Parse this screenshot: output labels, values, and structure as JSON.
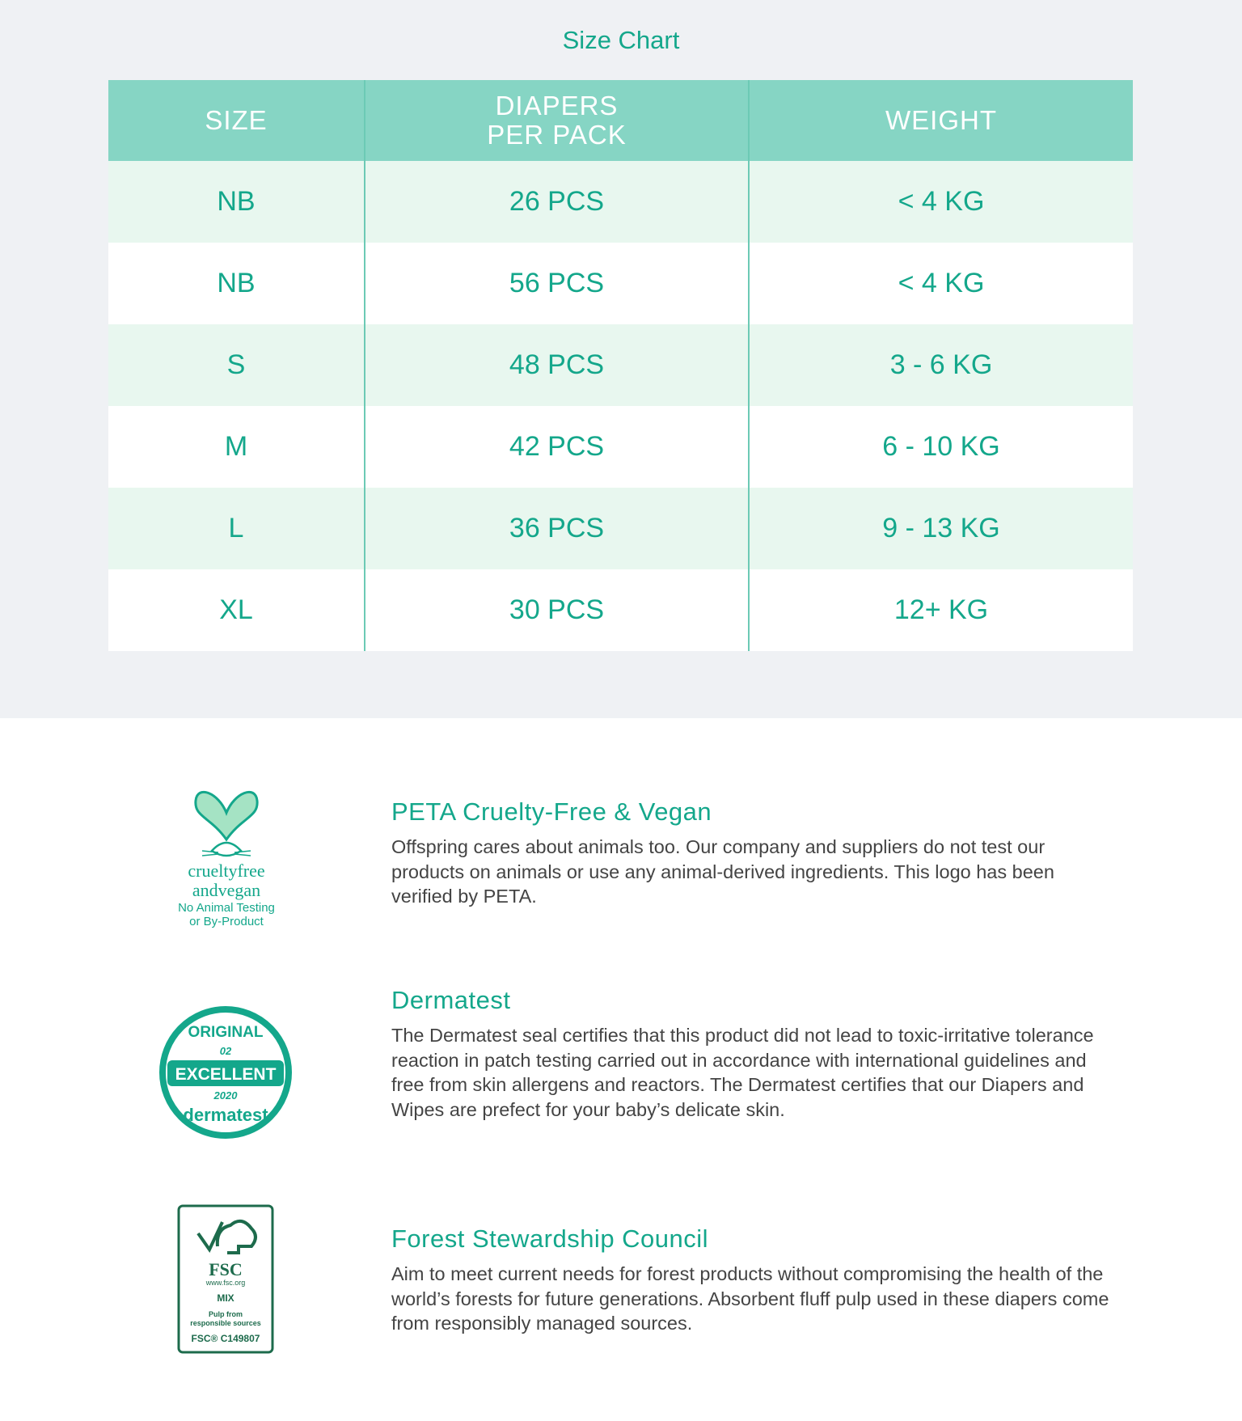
{
  "size_chart": {
    "title": "Size Chart",
    "columns": [
      "SIZE",
      "DIAPERS PER PACK",
      "WEIGHT"
    ],
    "header_line1": "DIAPERS",
    "header_line2": "PER PACK",
    "rows": [
      [
        "NB",
        "26 PCS",
        "< 4 KG"
      ],
      [
        "NB",
        "56 PCS",
        "< 4 KG"
      ],
      [
        "S",
        "48 PCS",
        "3 - 6 KG"
      ],
      [
        "M",
        "42 PCS",
        "6 - 10 KG"
      ],
      [
        "L",
        "36 PCS",
        "9 - 13 KG"
      ],
      [
        "XL",
        "30 PCS",
        "12+ KG"
      ]
    ]
  },
  "certifications": [
    {
      "title": "PETA Cruelty-Free & Vegan",
      "body": "Offspring cares about animals too. Our company and suppliers do not test our products on animals or use any animal-derived ingredients. This logo has been verified by PETA.",
      "logo_text": [
        "crueltyfree",
        "andvegan",
        "No Animal Testing",
        "or By-Product"
      ]
    },
    {
      "title": "Dermatest",
      "body": "The Dermatest seal certifies that this product did not lead to toxic-irritative tolerance reaction in patch testing carried out in accordance with international guidelines and free from skin allergens and reactors. The Dermatest certifies that our Diapers and Wipes are prefect for your baby’s delicate skin.",
      "logo_text": [
        "ORIGINAL",
        "02",
        "EXCELLENT",
        "2020",
        "dermatest"
      ]
    },
    {
      "title": "Forest Stewardship Council",
      "body": "Aim to meet current needs for forest products without compromising the health of the world’s forests for future generations. Absorbent fluff pulp used in these diapers come from responsibly managed sources.",
      "logo_text": [
        "FSC",
        "www.fsc.org",
        "MIX",
        "Pulp from",
        "responsible sources",
        "FSC® C149807"
      ]
    }
  ],
  "colors": {
    "accent": "#14a78b",
    "header": "#86d5c4",
    "row_alt": "#e8f7ef",
    "background": "#eff1f4"
  }
}
